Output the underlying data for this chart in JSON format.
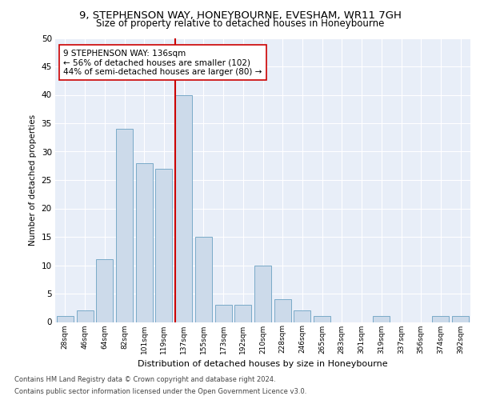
{
  "title1": "9, STEPHENSON WAY, HONEYBOURNE, EVESHAM, WR11 7GH",
  "title2": "Size of property relative to detached houses in Honeybourne",
  "xlabel": "Distribution of detached houses by size in Honeybourne",
  "ylabel": "Number of detached properties",
  "categories": [
    "28sqm",
    "46sqm",
    "64sqm",
    "82sqm",
    "101sqm",
    "119sqm",
    "137sqm",
    "155sqm",
    "173sqm",
    "192sqm",
    "210sqm",
    "228sqm",
    "246sqm",
    "265sqm",
    "283sqm",
    "301sqm",
    "319sqm",
    "337sqm",
    "356sqm",
    "374sqm",
    "392sqm"
  ],
  "values": [
    1,
    2,
    11,
    34,
    28,
    27,
    40,
    15,
    3,
    3,
    10,
    4,
    2,
    1,
    0,
    0,
    1,
    0,
    0,
    1,
    1
  ],
  "bar_color": "#ccdaea",
  "bar_edge_color": "#7aaac8",
  "property_line_color": "#cc0000",
  "annotation_text": "9 STEPHENSON WAY: 136sqm\n← 56% of detached houses are smaller (102)\n44% of semi-detached houses are larger (80) →",
  "annotation_box_color": "#ffffff",
  "annotation_box_edge": "#cc0000",
  "footer1": "Contains HM Land Registry data © Crown copyright and database right 2024.",
  "footer2": "Contains public sector information licensed under the Open Government Licence v3.0.",
  "ylim": [
    0,
    50
  ],
  "yticks": [
    0,
    5,
    10,
    15,
    20,
    25,
    30,
    35,
    40,
    45,
    50
  ],
  "bg_color": "#e8eef8",
  "fig_bg": "#ffffff",
  "grid_color": "#ffffff",
  "title1_fontsize": 9.5,
  "title2_fontsize": 8.5,
  "xlabel_fontsize": 8.0,
  "ylabel_fontsize": 7.5,
  "xtick_fontsize": 6.5,
  "ytick_fontsize": 7.5,
  "footer_fontsize": 6.0,
  "annot_fontsize": 7.5
}
